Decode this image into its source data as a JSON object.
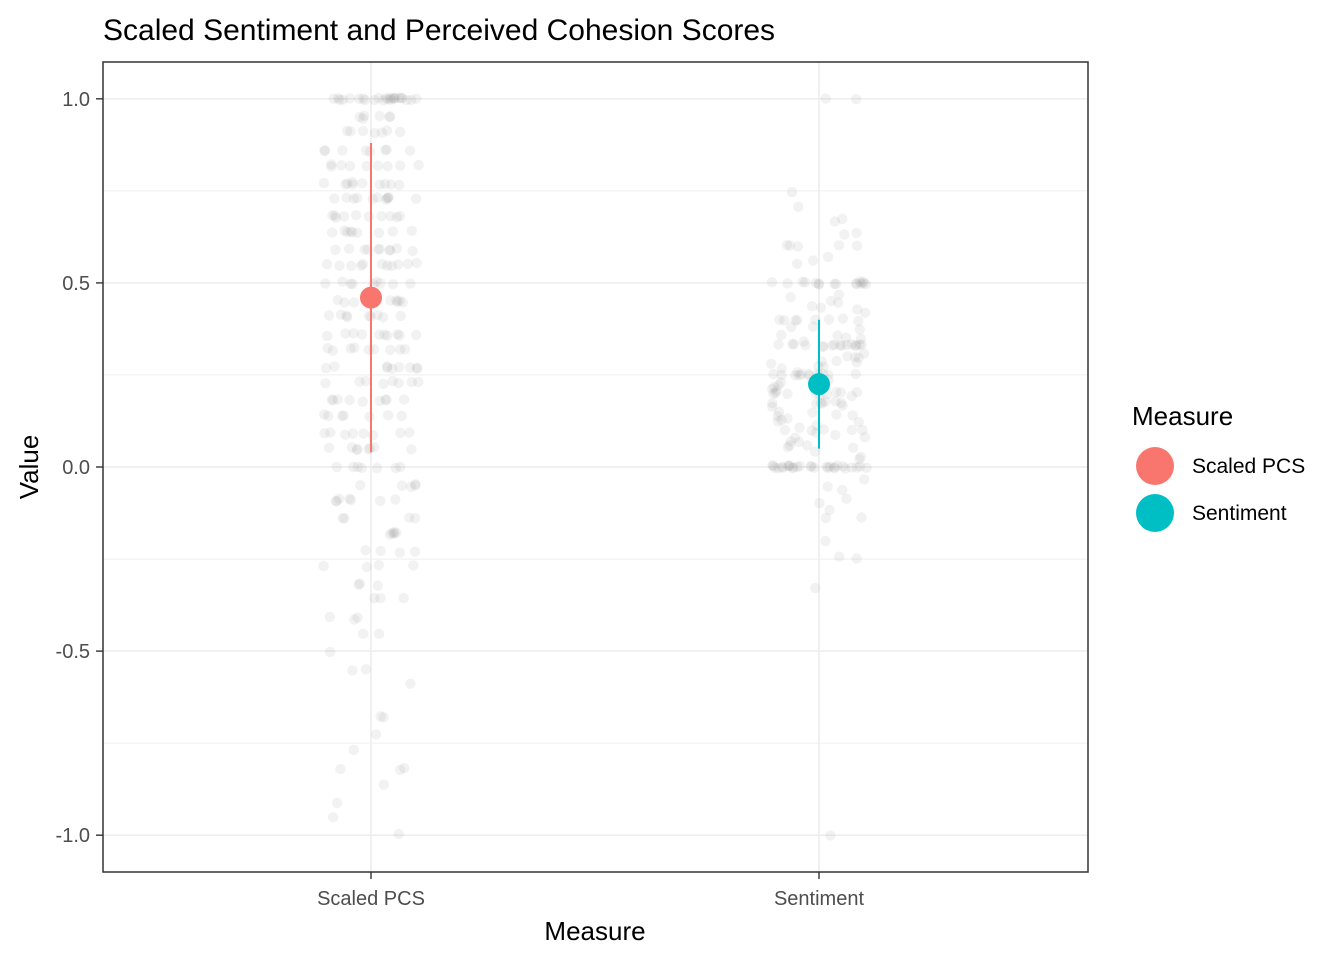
{
  "chart_data": {
    "type": "scatter",
    "title": "Scaled Sentiment and Perceived Cohesion Scores",
    "xlabel": "Measure",
    "ylabel": "Value",
    "categories": [
      "Scaled PCS",
      "Sentiment"
    ],
    "ylim": [
      -1.1,
      1.1
    ],
    "yticks": [
      -1.0,
      -0.5,
      0.0,
      0.5,
      1.0
    ],
    "ytick_labels": [
      "-1.0",
      "-0.5",
      "0.0",
      "0.5",
      "1.0"
    ],
    "grid": true,
    "legend": {
      "title": "Measure",
      "position": "right",
      "entries": [
        {
          "label": "Scaled PCS",
          "color": "#F8766D"
        },
        {
          "label": "Sentiment",
          "color": "#00BFC4"
        }
      ]
    },
    "summary": [
      {
        "category": "Scaled PCS",
        "mean": 0.46,
        "lower": 0.04,
        "upper": 0.88,
        "color": "#F8766D"
      },
      {
        "category": "Sentiment",
        "mean": 0.225,
        "lower": 0.05,
        "upper": 0.4,
        "color": "#00BFC4"
      }
    ],
    "jitter_points": {
      "color": "#808080",
      "opacity": 0.1,
      "series": [
        {
          "category": "Scaled PCS",
          "values": [
            1.0,
            1.0,
            1.0,
            1.0,
            1.0,
            1.0,
            1.0,
            1.0,
            1.0,
            1.0,
            1.0,
            1.0,
            1.0,
            1.0,
            1.0,
            1.0,
            1.0,
            1.0,
            1.0,
            1.0,
            1.0,
            1.0,
            1.0,
            1.0,
            0.95,
            0.95,
            0.95,
            0.95,
            0.95,
            0.95,
            0.91,
            0.91,
            0.91,
            0.91,
            0.91,
            0.91,
            0.91,
            0.86,
            0.86,
            0.86,
            0.86,
            0.86,
            0.86,
            0.86,
            0.86,
            0.82,
            0.82,
            0.82,
            0.82,
            0.82,
            0.82,
            0.82,
            0.82,
            0.82,
            0.77,
            0.77,
            0.77,
            0.77,
            0.77,
            0.77,
            0.77,
            0.77,
            0.77,
            0.77,
            0.73,
            0.73,
            0.73,
            0.73,
            0.73,
            0.73,
            0.73,
            0.73,
            0.73,
            0.73,
            0.73,
            0.68,
            0.68,
            0.68,
            0.68,
            0.68,
            0.68,
            0.68,
            0.68,
            0.68,
            0.68,
            0.64,
            0.64,
            0.64,
            0.64,
            0.64,
            0.64,
            0.64,
            0.64,
            0.64,
            0.59,
            0.59,
            0.59,
            0.59,
            0.59,
            0.59,
            0.59,
            0.59,
            0.59,
            0.59,
            0.55,
            0.55,
            0.55,
            0.55,
            0.55,
            0.55,
            0.55,
            0.55,
            0.55,
            0.55,
            0.55,
            0.5,
            0.5,
            0.5,
            0.5,
            0.5,
            0.5,
            0.5,
            0.5,
            0.5,
            0.45,
            0.45,
            0.45,
            0.45,
            0.45,
            0.45,
            0.45,
            0.45,
            0.41,
            0.41,
            0.41,
            0.41,
            0.41,
            0.41,
            0.41,
            0.41,
            0.41,
            0.36,
            0.36,
            0.36,
            0.36,
            0.36,
            0.36,
            0.36,
            0.36,
            0.36,
            0.36,
            0.32,
            0.32,
            0.32,
            0.32,
            0.32,
            0.32,
            0.32,
            0.32,
            0.32,
            0.27,
            0.27,
            0.27,
            0.27,
            0.27,
            0.27,
            0.27,
            0.27,
            0.27,
            0.23,
            0.23,
            0.23,
            0.23,
            0.23,
            0.23,
            0.23,
            0.23,
            0.18,
            0.18,
            0.18,
            0.18,
            0.18,
            0.18,
            0.18,
            0.18,
            0.18,
            0.14,
            0.14,
            0.14,
            0.14,
            0.14,
            0.14,
            0.14,
            0.09,
            0.09,
            0.09,
            0.09,
            0.09,
            0.09,
            0.09,
            0.09,
            0.05,
            0.05,
            0.05,
            0.05,
            0.05,
            0.05,
            0.05,
            0.05,
            0.0,
            0.0,
            0.0,
            0.0,
            0.0,
            0.0,
            0.0,
            -0.05,
            -0.05,
            -0.05,
            -0.05,
            -0.05,
            -0.09,
            -0.09,
            -0.09,
            -0.09,
            -0.09,
            -0.09,
            -0.09,
            -0.14,
            -0.14,
            -0.14,
            -0.14,
            -0.18,
            -0.18,
            -0.18,
            -0.18,
            -0.18,
            -0.23,
            -0.23,
            -0.23,
            -0.23,
            -0.27,
            -0.27,
            -0.27,
            -0.27,
            -0.32,
            -0.32,
            -0.32,
            -0.36,
            -0.36,
            -0.36,
            -0.41,
            -0.41,
            -0.41,
            -0.45,
            -0.45,
            -0.5,
            -0.55,
            -0.55,
            -0.59,
            -0.68,
            -0.68,
            -0.73,
            -0.77,
            -0.82,
            -0.82,
            -0.82,
            -0.86,
            -0.91,
            -0.95,
            -1.0
          ]
        },
        {
          "category": "Sentiment",
          "values": [
            1.0,
            1.0,
            0.75,
            0.71,
            0.67,
            0.67,
            0.64,
            0.63,
            0.6,
            0.6,
            0.6,
            0.6,
            0.6,
            0.57,
            0.56,
            0.55,
            0.5,
            0.5,
            0.5,
            0.5,
            0.5,
            0.5,
            0.5,
            0.5,
            0.5,
            0.5,
            0.5,
            0.5,
            0.5,
            0.5,
            0.5,
            0.5,
            0.47,
            0.46,
            0.45,
            0.45,
            0.44,
            0.43,
            0.43,
            0.42,
            0.4,
            0.4,
            0.4,
            0.4,
            0.4,
            0.4,
            0.4,
            0.4,
            0.38,
            0.38,
            0.37,
            0.36,
            0.36,
            0.35,
            0.35,
            0.34,
            0.33,
            0.33,
            0.33,
            0.33,
            0.33,
            0.33,
            0.33,
            0.33,
            0.33,
            0.33,
            0.33,
            0.33,
            0.33,
            0.33,
            0.33,
            0.33,
            0.31,
            0.3,
            0.3,
            0.3,
            0.29,
            0.29,
            0.28,
            0.28,
            0.27,
            0.27,
            0.27,
            0.26,
            0.25,
            0.25,
            0.25,
            0.25,
            0.25,
            0.25,
            0.25,
            0.25,
            0.25,
            0.25,
            0.25,
            0.25,
            0.24,
            0.23,
            0.23,
            0.22,
            0.22,
            0.21,
            0.21,
            0.2,
            0.2,
            0.2,
            0.2,
            0.2,
            0.2,
            0.2,
            0.2,
            0.2,
            0.19,
            0.18,
            0.18,
            0.17,
            0.17,
            0.17,
            0.17,
            0.17,
            0.17,
            0.16,
            0.15,
            0.15,
            0.14,
            0.14,
            0.14,
            0.13,
            0.13,
            0.12,
            0.12,
            0.11,
            0.11,
            0.1,
            0.1,
            0.1,
            0.1,
            0.1,
            0.09,
            0.09,
            0.08,
            0.08,
            0.07,
            0.07,
            0.06,
            0.06,
            0.05,
            0.05,
            0.04,
            0.03,
            0.02,
            0.0,
            0.0,
            0.0,
            0.0,
            0.0,
            0.0,
            0.0,
            0.0,
            0.0,
            0.0,
            0.0,
            0.0,
            0.0,
            0.0,
            0.0,
            0.0,
            0.0,
            0.0,
            0.0,
            0.0,
            0.0,
            0.0,
            0.0,
            0.0,
            0.0,
            0.0,
            0.0,
            0.0,
            -0.03,
            -0.05,
            -0.06,
            -0.09,
            -0.1,
            -0.12,
            -0.14,
            -0.14,
            -0.2,
            -0.24,
            -0.25,
            -0.33,
            -1.0
          ]
        }
      ]
    }
  }
}
